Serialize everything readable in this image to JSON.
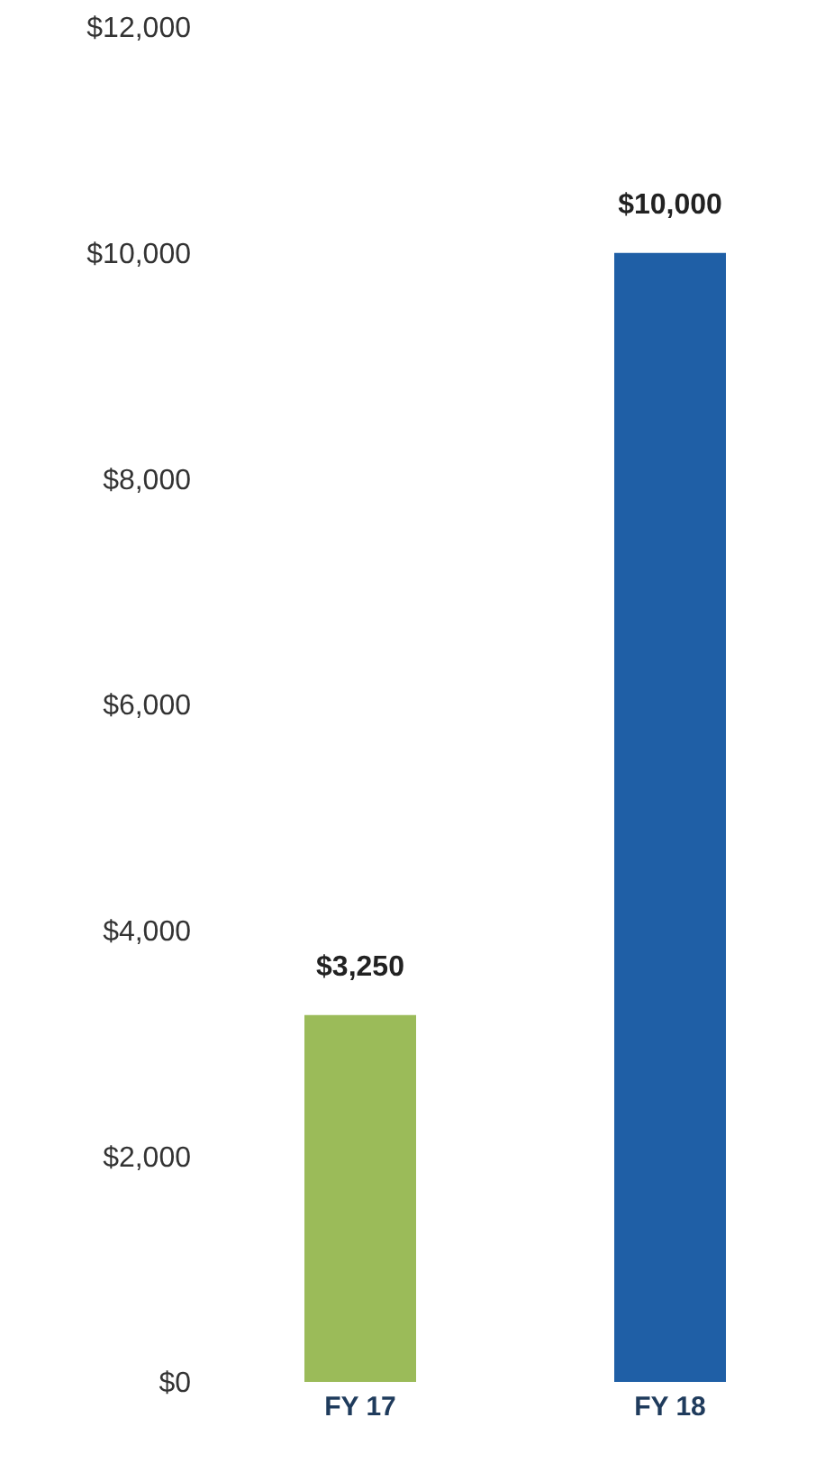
{
  "chart_data": {
    "type": "bar",
    "categories": [
      "FY 17",
      "FY 18"
    ],
    "values": [
      3250,
      10000
    ],
    "colors": [
      "#9bbb59",
      "#1f5fa6"
    ],
    "value_labels": [
      "$3,250",
      "$10,000"
    ],
    "ylim": [
      0,
      12000
    ],
    "yticks": [
      {
        "value": 0,
        "label": "$0"
      },
      {
        "value": 2000,
        "label": "$2,000"
      },
      {
        "value": 4000,
        "label": "$4,000"
      },
      {
        "value": 6000,
        "label": "$6,000"
      },
      {
        "value": 8000,
        "label": "$8,000"
      },
      {
        "value": 10000,
        "label": "$10,000"
      },
      {
        "value": 12000,
        "label": "$12,000"
      }
    ],
    "grid": false,
    "legend": false
  }
}
